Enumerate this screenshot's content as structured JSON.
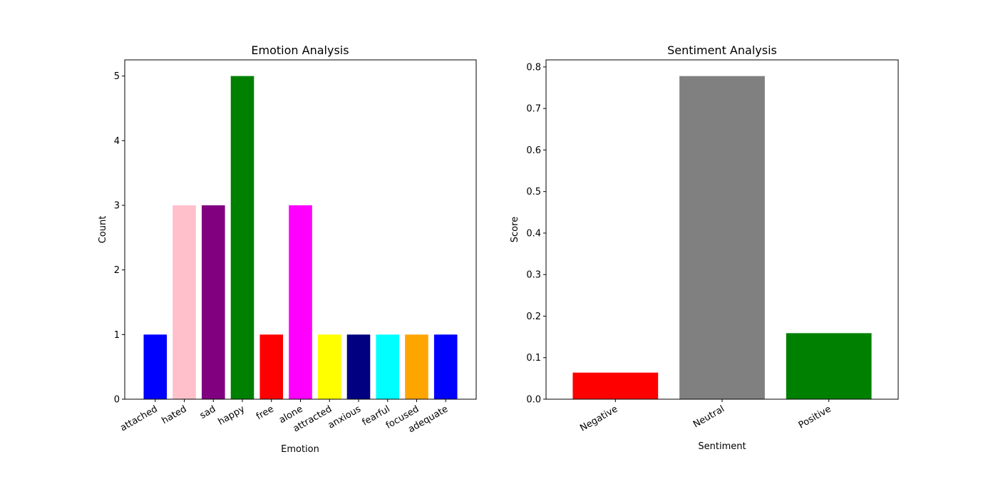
{
  "chart_data": [
    {
      "type": "bar",
      "title": "Emotion Analysis",
      "xlabel": "Emotion",
      "ylabel": "Count",
      "categories": [
        "attached",
        "hated",
        "sad",
        "happy",
        "free",
        "alone",
        "attracted",
        "anxious",
        "fearful",
        "focused",
        "adequate"
      ],
      "values": [
        1,
        3,
        3,
        5,
        1,
        3,
        1,
        1,
        1,
        1,
        1
      ],
      "colors": [
        "#0000ff",
        "#ffc0cb",
        "#800080",
        "#008000",
        "#ff0000",
        "#ff00ff",
        "#ffff00",
        "#000080",
        "#00ffff",
        "#ffa500",
        "#0000ff"
      ],
      "ylim": [
        0,
        5.25
      ],
      "yticks": [
        0,
        1,
        2,
        3,
        4,
        5
      ],
      "ytick_labels": [
        "0",
        "1",
        "2",
        "3",
        "4",
        "5"
      ],
      "grid": false
    },
    {
      "type": "bar",
      "title": "Sentiment Analysis",
      "xlabel": "Sentiment",
      "ylabel": "Score",
      "categories": [
        "Negative",
        "Neutral",
        "Positive"
      ],
      "values": [
        0.064,
        0.778,
        0.159
      ],
      "colors": [
        "#ff0000",
        "#808080",
        "#008000"
      ],
      "ylim": [
        0,
        0.817
      ],
      "yticks": [
        0,
        0.1,
        0.2,
        0.3,
        0.4,
        0.5,
        0.6,
        0.7,
        0.8
      ],
      "ytick_labels": [
        "0.0",
        "0.1",
        "0.2",
        "0.3",
        "0.4",
        "0.5",
        "0.6",
        "0.7",
        "0.8"
      ],
      "grid": false
    }
  ]
}
